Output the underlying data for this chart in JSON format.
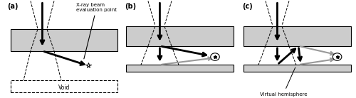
{
  "bg_color": "#ffffff",
  "slab_color": "#cccccc",
  "slab_edge_color": "#000000",
  "panel_labels": [
    "(a)",
    "(b)",
    "(c)"
  ],
  "label_a_text1": "X-ray beam\nevaluation point",
  "label_void": "Void",
  "label_hemisphere": "Virtual hemisphere",
  "arrow_color_black": "#000000",
  "arrow_color_gray": "#999999",
  "fig_width": 5.0,
  "fig_height": 1.38,
  "dpi": 100
}
